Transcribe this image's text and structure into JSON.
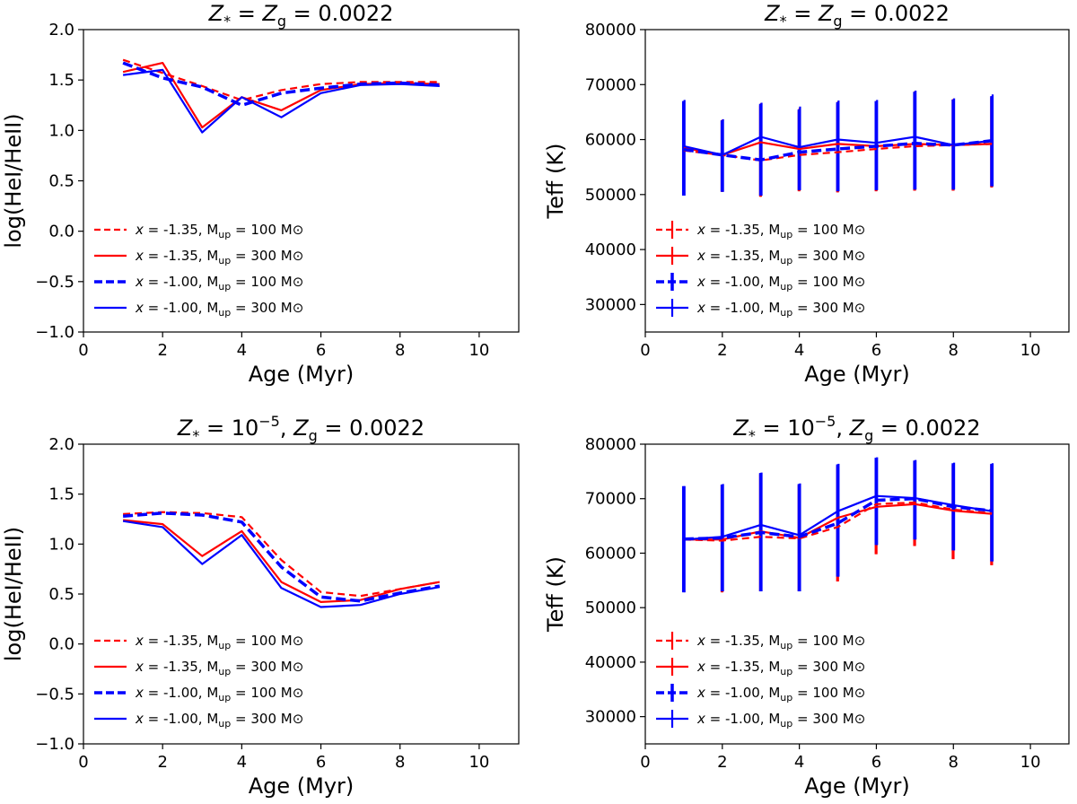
{
  "chart_data": [
    {
      "type": "line",
      "title": "Z* = Zg = 0.0022",
      "title_parts": {
        "lhs": "Z",
        "lhs_sub": "*",
        "mid": "=",
        "rhs": "Z",
        "rhs_sub": "g",
        "value": "= 0.0022"
      },
      "xlabel": "Age (Myr)",
      "ylabel": "log(HeI/HeII)",
      "xlim": [
        0,
        11
      ],
      "ylim": [
        -1.0,
        2.0
      ],
      "xticks": [
        "0",
        "2",
        "4",
        "6",
        "8",
        "10"
      ],
      "yticks": [
        "−1.0",
        "−0.5",
        "0.0",
        "0.5",
        "1.0",
        "1.5",
        "2.0"
      ],
      "legend_position": "lower-left",
      "x": [
        1,
        2,
        3,
        4,
        5,
        6,
        7,
        8,
        9
      ],
      "series": [
        {
          "name": "x = -1.35, Mup = 100 M⊙",
          "x_label": "x",
          "rest": "= -1.35, M",
          "sub": "up",
          "tail": "= 100 M⊙",
          "color": "#ff0000",
          "style": "dashed",
          "width": 2.2,
          "values": [
            1.7,
            1.57,
            1.44,
            1.3,
            1.4,
            1.46,
            1.48,
            1.48,
            1.48
          ]
        },
        {
          "name": "x = -1.35, Mup = 300 M⊙",
          "x_label": "x",
          "rest": "= -1.35, M",
          "sub": "up",
          "tail": "= 300 M⊙",
          "color": "#ff0000",
          "style": "solid",
          "width": 2.2,
          "values": [
            1.58,
            1.67,
            1.03,
            1.33,
            1.2,
            1.4,
            1.46,
            1.47,
            1.46
          ]
        },
        {
          "name": "x = -1.00, Mup = 100 M⊙",
          "x_label": "x",
          "rest": "= -1.00, M",
          "sub": "up",
          "tail": "= 100 M⊙",
          "color": "#0000ff",
          "style": "dashed",
          "width": 3.5,
          "values": [
            1.67,
            1.52,
            1.43,
            1.25,
            1.37,
            1.42,
            1.46,
            1.47,
            1.45
          ]
        },
        {
          "name": "x = -1.00, Mup = 300 M⊙",
          "x_label": "x",
          "rest": "= -1.00, M",
          "sub": "up",
          "tail": "= 300 M⊙",
          "color": "#0000ff",
          "style": "solid",
          "width": 2.2,
          "values": [
            1.55,
            1.6,
            0.98,
            1.33,
            1.13,
            1.37,
            1.45,
            1.46,
            1.44
          ]
        }
      ]
    },
    {
      "type": "line",
      "title": "Z* = Zg = 0.0022",
      "title_parts": {
        "lhs": "Z",
        "lhs_sub": "*",
        "mid": "=",
        "rhs": "Z",
        "rhs_sub": "g",
        "value": "= 0.0022"
      },
      "xlabel": "Age (Myr)",
      "ylabel": "Teff (K)",
      "xlim": [
        0,
        11
      ],
      "ylim": [
        25000,
        80000
      ],
      "xticks": [
        "0",
        "2",
        "4",
        "6",
        "8",
        "10"
      ],
      "yticks": [
        "30000",
        "40000",
        "50000",
        "60000",
        "70000",
        "80000"
      ],
      "legend_position": "lower-left",
      "x": [
        1,
        2,
        3,
        4,
        5,
        6,
        7,
        8,
        9
      ],
      "series": [
        {
          "name": "x = -1.35, Mup = 100 M⊙",
          "x_label": "x",
          "rest": "= -1.35, M",
          "sub": "up",
          "tail": "= 100 M⊙",
          "color": "#ff0000",
          "style": "dashed",
          "width": 2.2,
          "values": [
            58000,
            57200,
            56200,
            57200,
            57700,
            58300,
            58800,
            59000,
            59200
          ],
          "err_low": [
            50000,
            50500,
            49600,
            50600,
            50400,
            50600,
            50700,
            50700,
            51300
          ],
          "err_high": [
            66500,
            63500,
            66200,
            65300,
            66500,
            66800,
            68500,
            67300,
            67700
          ]
        },
        {
          "name": "x = -1.35, Mup = 300 M⊙",
          "x_label": "x",
          "rest": "= -1.35, M",
          "sub": "up",
          "tail": "= 300 M⊙",
          "color": "#ff0000",
          "style": "solid",
          "width": 2.2,
          "values": [
            58500,
            57200,
            59500,
            58300,
            59200,
            58800,
            59200,
            59000,
            59200
          ],
          "err_low": [
            50000,
            50500,
            49600,
            50600,
            50400,
            50600,
            50700,
            50700,
            51300
          ],
          "err_high": [
            67000,
            63600,
            66600,
            65700,
            66900,
            67000,
            68800,
            67400,
            67900
          ]
        },
        {
          "name": "x = -1.00, Mup = 100 M⊙",
          "x_label": "x",
          "rest": "= -1.00, M",
          "sub": "up",
          "tail": "= 100 M⊙",
          "color": "#0000ff",
          "style": "dashed",
          "width": 3.5,
          "values": [
            58200,
            57200,
            56300,
            57700,
            58300,
            58800,
            59300,
            59000,
            59800
          ],
          "err_low": [
            49800,
            50500,
            49800,
            50800,
            50600,
            50800,
            50900,
            50900,
            51500
          ],
          "err_high": [
            67000,
            63500,
            66500,
            65500,
            66800,
            67000,
            68700,
            67300,
            67900
          ]
        },
        {
          "name": "x = -1.00, Mup = 300 M⊙",
          "x_label": "x",
          "rest": "= -1.00, M",
          "sub": "up",
          "tail": "= 300 M⊙",
          "color": "#0000ff",
          "style": "solid",
          "width": 2.2,
          "values": [
            58800,
            57200,
            60500,
            58600,
            60000,
            59400,
            60500,
            59000,
            59800
          ],
          "err_low": [
            49800,
            50500,
            49800,
            50800,
            50600,
            50800,
            50900,
            50900,
            51500
          ],
          "err_high": [
            67200,
            63700,
            66700,
            66000,
            67100,
            67200,
            68900,
            67500,
            68200
          ]
        }
      ]
    },
    {
      "type": "line",
      "title": "Z* = 10^-5, Zg = 0.0022",
      "title_parts": {
        "lhs": "Z",
        "lhs_sub": "*",
        "mid": "= 10",
        "exp": "−5",
        "comma": ",",
        "rhs": "Z",
        "rhs_sub": "g",
        "value": "= 0.0022"
      },
      "xlabel": "Age (Myr)",
      "ylabel": "log(HeI/HeII)",
      "xlim": [
        0,
        11
      ],
      "ylim": [
        -1.0,
        2.0
      ],
      "xticks": [
        "0",
        "2",
        "4",
        "6",
        "8",
        "10"
      ],
      "yticks": [
        "−1.0",
        "−0.5",
        "0.0",
        "0.5",
        "1.0",
        "1.5",
        "2.0"
      ],
      "legend_position": "lower-left",
      "x": [
        1,
        2,
        3,
        4,
        5,
        6,
        7,
        8,
        9
      ],
      "series": [
        {
          "name": "x = -1.35, Mup = 100 M⊙",
          "x_label": "x",
          "rest": "= -1.35, M",
          "sub": "up",
          "tail": "= 100 M⊙",
          "color": "#ff0000",
          "style": "dashed",
          "width": 2.2,
          "values": [
            1.3,
            1.32,
            1.31,
            1.27,
            0.84,
            0.52,
            0.48,
            0.55,
            0.62
          ]
        },
        {
          "name": "x = -1.35, Mup = 300 M⊙",
          "x_label": "x",
          "rest": "= -1.35, M",
          "sub": "up",
          "tail": "= 300 M⊙",
          "color": "#ff0000",
          "style": "solid",
          "width": 2.2,
          "values": [
            1.24,
            1.2,
            0.88,
            1.13,
            0.62,
            0.42,
            0.44,
            0.55,
            0.62
          ]
        },
        {
          "name": "x = -1.00, Mup = 100 M⊙",
          "x_label": "x",
          "rest": "= -1.00, M",
          "sub": "up",
          "tail": "= 100 M⊙",
          "color": "#0000ff",
          "style": "dashed",
          "width": 3.5,
          "values": [
            1.28,
            1.31,
            1.29,
            1.22,
            0.77,
            0.47,
            0.43,
            0.51,
            0.58
          ]
        },
        {
          "name": "x = -1.00, Mup = 300 M⊙",
          "x_label": "x",
          "rest": "= -1.00, M",
          "sub": "up",
          "tail": "= 300 M⊙",
          "color": "#0000ff",
          "style": "solid",
          "width": 2.2,
          "values": [
            1.23,
            1.17,
            0.8,
            1.09,
            0.56,
            0.37,
            0.39,
            0.5,
            0.57
          ]
        }
      ]
    },
    {
      "type": "line",
      "title": "Z* = 10^-5, Zg = 0.0022",
      "title_parts": {
        "lhs": "Z",
        "lhs_sub": "*",
        "mid": "= 10",
        "exp": "−5",
        "comma": ",",
        "rhs": "Z",
        "rhs_sub": "g",
        "value": "= 0.0022"
      },
      "xlabel": "Age (Myr)",
      "ylabel": "Teff (K)",
      "xlim": [
        0,
        11
      ],
      "ylim": [
        25000,
        80000
      ],
      "xticks": [
        "0",
        "2",
        "4",
        "6",
        "8",
        "10"
      ],
      "yticks": [
        "30000",
        "40000",
        "50000",
        "60000",
        "70000",
        "80000"
      ],
      "legend_position": "lower-left",
      "x": [
        1,
        2,
        3,
        4,
        5,
        6,
        7,
        8,
        9
      ],
      "series": [
        {
          "name": "x = -1.35, Mup = 100 M⊙",
          "x_label": "x",
          "rest": "= -1.35, M",
          "sub": "up",
          "tail": "= 100 M⊙",
          "color": "#ff0000",
          "style": "dashed",
          "width": 2.2,
          "values": [
            62500,
            62300,
            63000,
            62700,
            64800,
            69000,
            69300,
            68000,
            67300
          ],
          "err_low": [
            53000,
            52800,
            53000,
            53000,
            54800,
            59800,
            61300,
            58900,
            57800
          ],
          "err_high": [
            72000,
            72500,
            74500,
            72500,
            76000,
            77000,
            76800,
            76200,
            76200
          ]
        },
        {
          "name": "x = -1.35, Mup = 300 M⊙",
          "x_label": "x",
          "rest": "= -1.35, M",
          "sub": "up",
          "tail": "= 300 M⊙",
          "color": "#ff0000",
          "style": "solid",
          "width": 2.2,
          "values": [
            62500,
            62500,
            64000,
            62800,
            66500,
            68500,
            69000,
            67800,
            67200
          ],
          "err_low": [
            53000,
            52800,
            53000,
            53000,
            54800,
            59800,
            61300,
            58900,
            57800
          ],
          "err_high": [
            72000,
            72600,
            74700,
            72500,
            76200,
            77200,
            77000,
            76400,
            76300
          ]
        },
        {
          "name": "x = -1.00, Mup = 100 M⊙",
          "x_label": "x",
          "rest": "= -1.00, M",
          "sub": "up",
          "tail": "= 100 M⊙",
          "color": "#0000ff",
          "style": "dashed",
          "width": 3.5,
          "values": [
            62600,
            62800,
            63800,
            63000,
            65500,
            69700,
            70000,
            68500,
            67800
          ],
          "err_low": [
            52800,
            53000,
            53000,
            53000,
            55700,
            61500,
            62500,
            60500,
            58500
          ],
          "err_high": [
            72300,
            72600,
            74700,
            72700,
            76300,
            77500,
            77000,
            76500,
            76400
          ]
        },
        {
          "name": "x = -1.00, Mup = 300 M⊙",
          "x_label": "x",
          "rest": "= -1.00, M",
          "sub": "up",
          "tail": "= 300 M⊙",
          "color": "#0000ff",
          "style": "solid",
          "width": 2.2,
          "values": [
            62500,
            63000,
            65200,
            63300,
            67700,
            70500,
            70100,
            68800,
            67700
          ],
          "err_low": [
            52800,
            53000,
            53000,
            53000,
            55700,
            61500,
            62500,
            60500,
            58500
          ],
          "err_high": [
            72300,
            72700,
            74800,
            72800,
            76400,
            77600,
            77100,
            76600,
            76500
          ]
        }
      ]
    }
  ]
}
